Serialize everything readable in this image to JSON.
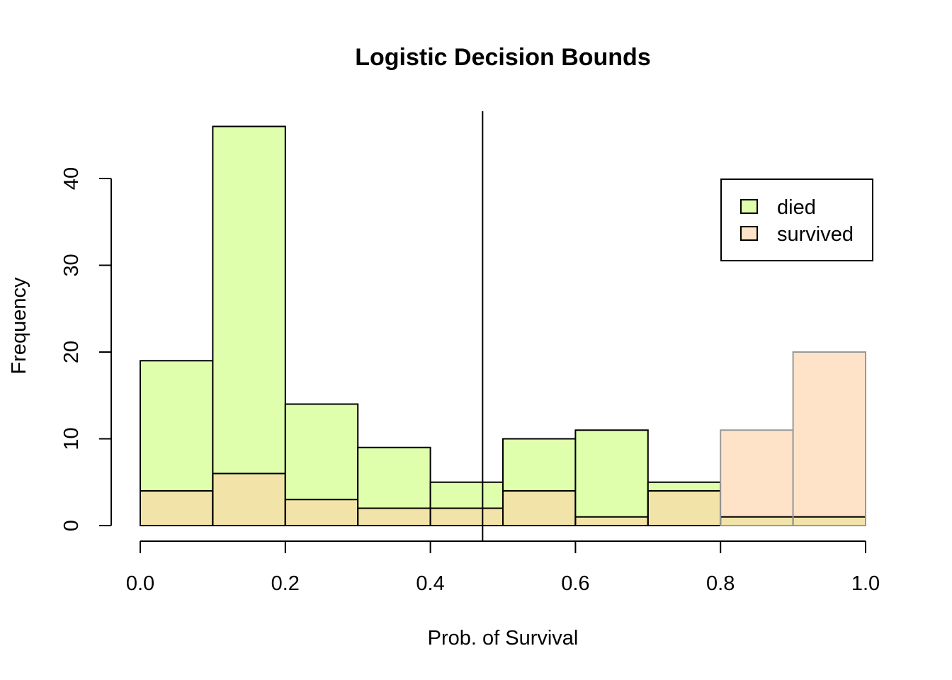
{
  "chart_data": {
    "type": "histogram",
    "title": "Logistic Decision Bounds",
    "xlabel": "Prob. of Survival",
    "ylabel": "Frequency",
    "xlim": [
      0,
      1
    ],
    "ylim": [
      0,
      46
    ],
    "x_ticks": [
      "0.0",
      "0.2",
      "0.4",
      "0.6",
      "0.8",
      "1.0"
    ],
    "y_ticks": [
      "0",
      "10",
      "20",
      "30",
      "40"
    ],
    "bin_edges": [
      0,
      0.1,
      0.2,
      0.3,
      0.4,
      0.5,
      0.6,
      0.7,
      0.8,
      0.9,
      1.0
    ],
    "series": [
      {
        "name": "died",
        "color": "#E0FFAC",
        "values": [
          19,
          46,
          14,
          9,
          5,
          10,
          11,
          5,
          1,
          1
        ]
      },
      {
        "name": "survived",
        "color": "#FFE3C8",
        "values": [
          4,
          6,
          3,
          2,
          2,
          4,
          1,
          4,
          11,
          20
        ]
      }
    ],
    "overlap_color": "#F2E4A8",
    "decision_bound": 0.472,
    "legend": {
      "position": "top-right",
      "entries": [
        "died",
        "survived"
      ]
    },
    "grid": false
  }
}
